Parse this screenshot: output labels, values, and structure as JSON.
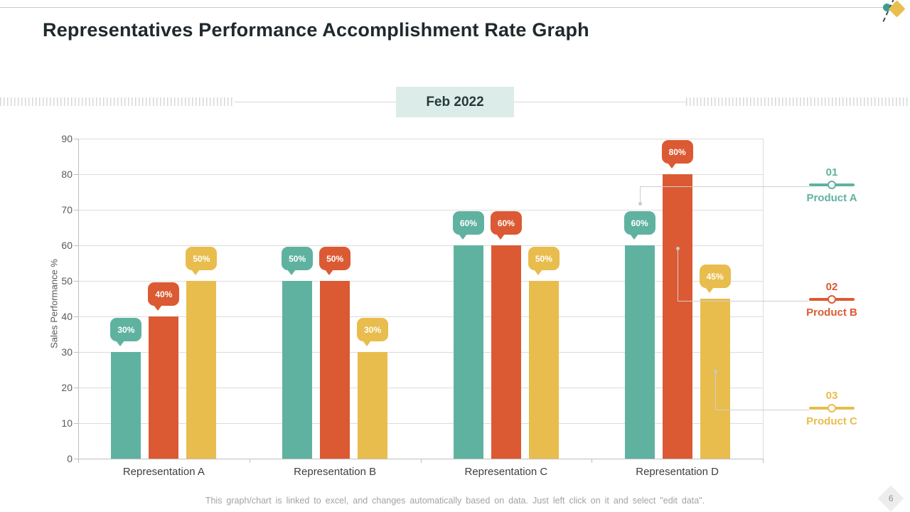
{
  "slide": {
    "title": "Representatives Performance Accomplishment Rate Graph",
    "date_badge": "Feb 2022",
    "footer_note": "This graph/chart is linked to excel, and changes automatically based on data. Just left click on it and select \"edit data\".",
    "page_number": "6"
  },
  "colors": {
    "teal": "#5FB2A0",
    "orange": "#DB5A33",
    "yellow": "#E8BD4D",
    "grid": "#DCDCDC",
    "axis": "#BFBFBF",
    "axis_text": "#595959",
    "category_text": "#3F3F3F",
    "badge_bg": "#DCEDE9",
    "connector": "#CFCFCF"
  },
  "chart_data": {
    "type": "bar",
    "title": "Representatives Performance Accomplishment Rate Graph",
    "period": "Feb 2022",
    "categories": [
      "Representation A",
      "Representation B",
      "Representation C",
      "Representation D"
    ],
    "series": [
      {
        "name": "Product A",
        "color_key": "teal",
        "values": [
          30,
          50,
          60,
          60
        ],
        "labels": [
          "30%",
          "50%",
          "60%",
          "60%"
        ]
      },
      {
        "name": "Product B",
        "color_key": "orange",
        "values": [
          40,
          50,
          60,
          80
        ],
        "labels": [
          "40%",
          "50%",
          "60%",
          "80%"
        ]
      },
      {
        "name": "Product C",
        "color_key": "yellow",
        "values": [
          50,
          30,
          50,
          45
        ],
        "labels": [
          "50%",
          "30%",
          "50%",
          "45%"
        ]
      }
    ],
    "xlabel": "",
    "ylabel": "Sales Performance %",
    "ylim": [
      0,
      90
    ],
    "ytick_step": 10,
    "yticks": [
      0,
      10,
      20,
      30,
      40,
      50,
      60,
      70,
      80,
      90
    ],
    "grid": true,
    "legend_position": "right"
  },
  "legend": {
    "items": [
      {
        "index": "01",
        "name": "Product A",
        "color_key": "teal"
      },
      {
        "index": "02",
        "name": "Product B",
        "color_key": "orange"
      },
      {
        "index": "03",
        "name": "Product C",
        "color_key": "yellow"
      }
    ]
  }
}
